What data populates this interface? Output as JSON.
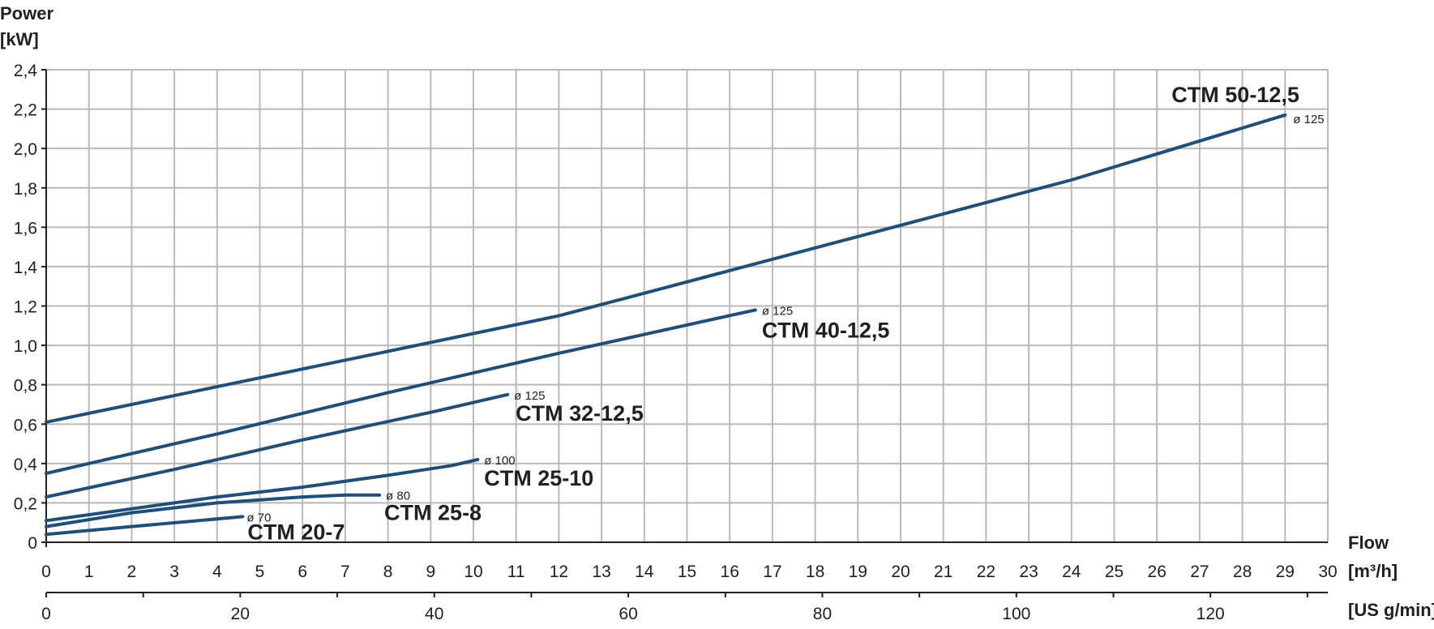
{
  "chart_data": {
    "type": "line",
    "y_axis": {
      "title_line1": "Power",
      "title_line2": "[kW]",
      "range": [
        0,
        2.4
      ],
      "ticks": [
        "0",
        "0,2",
        "0,4",
        "0,6",
        "0,8",
        "1,0",
        "1,2",
        "1,4",
        "1,6",
        "1,8",
        "2,0",
        "2,2",
        "2,4"
      ]
    },
    "x_axis": {
      "title_line1": "Flow",
      "title_line2": "[m³/h]",
      "range": [
        0,
        30
      ],
      "ticks": [
        "0",
        "1",
        "2",
        "3",
        "4",
        "5",
        "6",
        "7",
        "8",
        "9",
        "10",
        "11",
        "12",
        "13",
        "14",
        "15",
        "16",
        "17",
        "18",
        "19",
        "20",
        "21",
        "22",
        "23",
        "24",
        "25",
        "26",
        "27",
        "28",
        "29",
        "30"
      ]
    },
    "x2_axis": {
      "title": "[US g/min]",
      "range": [
        0,
        132.1
      ],
      "ticks": [
        {
          "value": 0,
          "label": "0"
        },
        {
          "value": 20,
          "label": "20"
        },
        {
          "value": 40,
          "label": "40"
        },
        {
          "value": 60,
          "label": "60"
        },
        {
          "value": 80,
          "label": "80"
        },
        {
          "value": 100,
          "label": "100"
        },
        {
          "value": 120,
          "label": "120"
        }
      ]
    },
    "grid": true,
    "line_color": "#1f4e79",
    "series": [
      {
        "name": "CTM 50-12,5",
        "diameter": "ø 125",
        "x": [
          0,
          4,
          8,
          12,
          16,
          20,
          24,
          29
        ],
        "y": [
          0.61,
          0.79,
          0.97,
          1.15,
          1.38,
          1.61,
          1.84,
          2.17
        ]
      },
      {
        "name": "CTM 40-12,5",
        "diameter": "ø 125",
        "x": [
          0,
          4,
          8,
          12,
          16.6
        ],
        "y": [
          0.35,
          0.55,
          0.76,
          0.96,
          1.18
        ]
      },
      {
        "name": "CTM 32-12,5",
        "diameter": "ø 125",
        "x": [
          0,
          3,
          6,
          9,
          10.8
        ],
        "y": [
          0.23,
          0.37,
          0.52,
          0.66,
          0.75
        ]
      },
      {
        "name": "CTM 25-10",
        "diameter": "ø 100",
        "x": [
          0,
          2,
          4,
          6,
          8,
          9.5,
          10.1
        ],
        "y": [
          0.11,
          0.17,
          0.23,
          0.28,
          0.34,
          0.39,
          0.42
        ]
      },
      {
        "name": "CTM 25-8",
        "diameter": "ø 80",
        "x": [
          0,
          2,
          4,
          6,
          7,
          7.8
        ],
        "y": [
          0.08,
          0.15,
          0.2,
          0.23,
          0.24,
          0.24
        ]
      },
      {
        "name": "CTM 20-7",
        "diameter": "ø 70",
        "x": [
          0,
          2,
          4.6
        ],
        "y": [
          0.04,
          0.08,
          0.13
        ]
      }
    ]
  }
}
